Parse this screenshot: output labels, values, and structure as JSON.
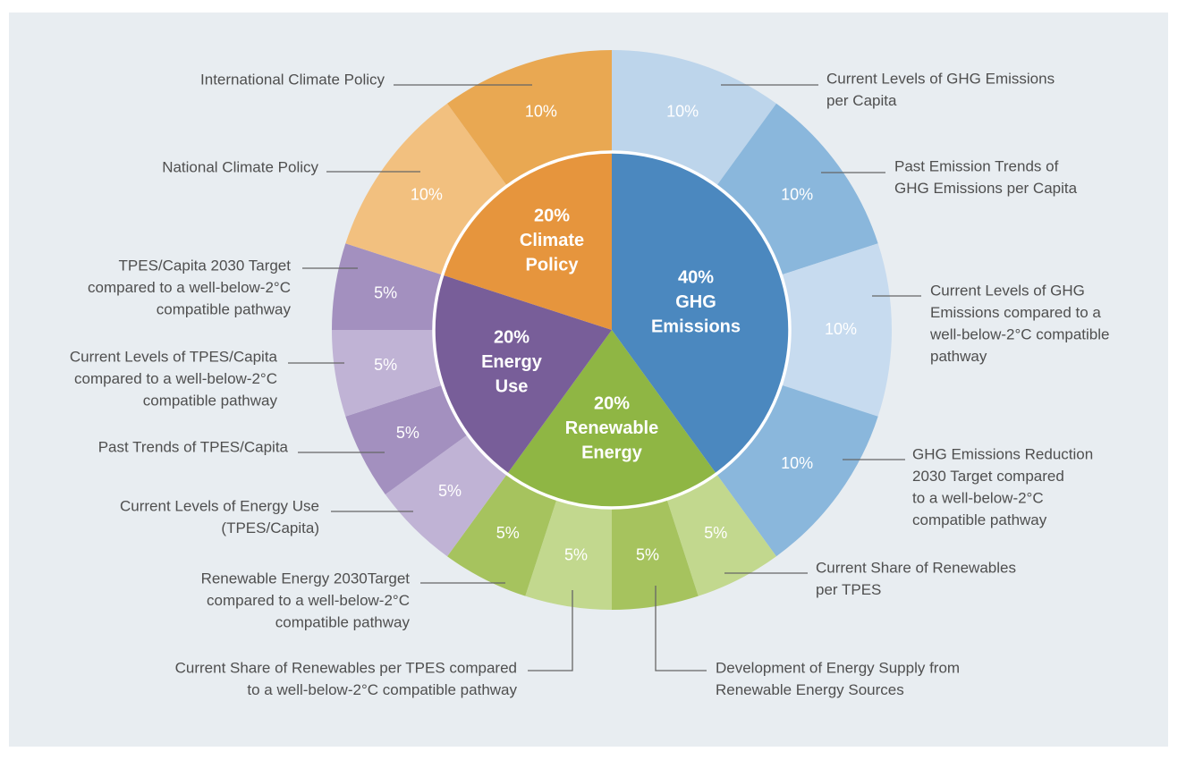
{
  "chart_data": {
    "type": "sunburst",
    "title": "",
    "colors": {
      "background": "#e8edf1",
      "leader": "#666666",
      "ring": "#ffffff"
    },
    "categories": [
      {
        "name": "GHG Emissions",
        "value": 40,
        "label": [
          "40%",
          "GHG",
          "Emissions"
        ],
        "color": "#4b88bf",
        "children": [
          {
            "value": 10,
            "label": "10%",
            "color": "#bdd5eb",
            "description": [
              "Current Levels of GHG Emissions",
              "per Capita"
            ]
          },
          {
            "value": 10,
            "label": "10%",
            "color": "#8ab7dc",
            "description": [
              "Past Emission Trends of",
              "GHG Emissions per Capita"
            ]
          },
          {
            "value": 10,
            "label": "10%",
            "color": "#c7dbef",
            "description": [
              "Current Levels of GHG",
              "Emissions compared to a",
              "well-below-2°C compatible",
              "pathway"
            ]
          },
          {
            "value": 10,
            "label": "10%",
            "color": "#8ab7dc",
            "description": [
              "GHG Emissions Reduction",
              "2030 Target compared",
              "to a well-below-2°C",
              "compatible pathway"
            ]
          }
        ]
      },
      {
        "name": "Renewable Energy",
        "value": 20,
        "label": [
          "20%",
          "Renewable",
          "Energy"
        ],
        "color": "#8fb644",
        "children": [
          {
            "value": 5,
            "label": "5%",
            "color": "#c2d88e",
            "description": [
              "Current Share of Renewables",
              "per TPES"
            ]
          },
          {
            "value": 5,
            "label": "5%",
            "color": "#a6c35e",
            "description": [
              "Development of Energy Supply from",
              "Renewable Energy Sources"
            ]
          },
          {
            "value": 5,
            "label": "5%",
            "color": "#c2d88e",
            "description": [
              "Current Share of Renewables per TPES compared",
              "to a well-below-2°C compatible pathway"
            ]
          },
          {
            "value": 5,
            "label": "5%",
            "color": "#a6c35e",
            "description": [
              "Renewable Energy 2030Target",
              "compared to a well-below-2°C",
              "compatible pathway"
            ]
          }
        ]
      },
      {
        "name": "Energy Use",
        "value": 20,
        "label": [
          "20%",
          "Energy",
          "Use"
        ],
        "color": "#785e99",
        "children": [
          {
            "value": 5,
            "label": "5%",
            "color": "#c0b3d5",
            "description": [
              "Current Levels of Energy Use",
              "(TPES/Capita)"
            ]
          },
          {
            "value": 5,
            "label": "5%",
            "color": "#a390bf",
            "description": [
              "Past Trends of TPES/Capita"
            ]
          },
          {
            "value": 5,
            "label": "5%",
            "color": "#c0b3d5",
            "description": [
              "Current Levels of TPES/Capita",
              "compared to a well-below-2°C",
              "compatible pathway"
            ]
          },
          {
            "value": 5,
            "label": "5%",
            "color": "#a390bf",
            "description": [
              "TPES/Capita 2030 Target",
              "compared to a well-below-2°C",
              "compatible pathway"
            ]
          }
        ]
      },
      {
        "name": "Climate Policy",
        "value": 20,
        "label": [
          "20%",
          "Climate",
          "Policy"
        ],
        "color": "#e6953d",
        "children": [
          {
            "value": 10,
            "label": "10%",
            "color": "#f2c07f",
            "description": [
              "National Climate Policy"
            ]
          },
          {
            "value": 10,
            "label": "10%",
            "color": "#e9a852",
            "description": [
              "International Climate Policy"
            ]
          }
        ]
      }
    ]
  }
}
